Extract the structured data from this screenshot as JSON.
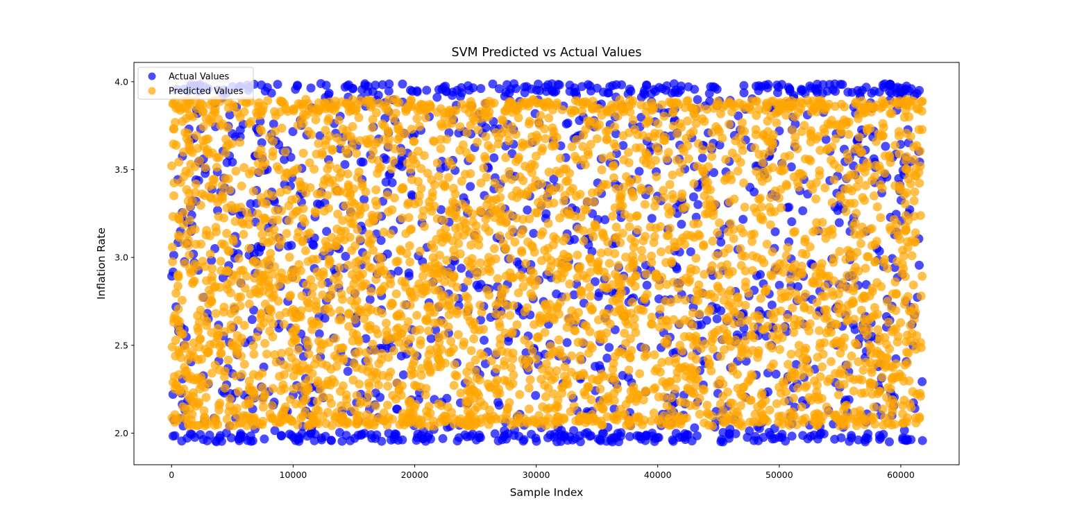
{
  "chart_data": {
    "type": "scatter",
    "title": "SVM Predicted vs Actual Values",
    "xlabel": "Sample Index",
    "ylabel": "Inflation Rate",
    "xlim": [
      -3100,
      64800
    ],
    "ylim": [
      1.82,
      4.11
    ],
    "x_ticks": [
      {
        "value": 0,
        "label": "0"
      },
      {
        "value": 10000,
        "label": "10000"
      },
      {
        "value": 20000,
        "label": "20000"
      },
      {
        "value": 30000,
        "label": "30000"
      },
      {
        "value": 40000,
        "label": "40000"
      },
      {
        "value": 50000,
        "label": "50000"
      },
      {
        "value": 60000,
        "label": "60000"
      }
    ],
    "y_ticks": [
      {
        "value": 2.0,
        "label": "2.0"
      },
      {
        "value": 2.5,
        "label": "2.5"
      },
      {
        "value": 3.0,
        "label": "3.0"
      },
      {
        "value": 3.5,
        "label": "3.5"
      },
      {
        "value": 4.0,
        "label": "4.0"
      }
    ],
    "grid": false,
    "legend_position": "top-left",
    "n_points_per_series": 61800,
    "series": [
      {
        "name": "Actual Values",
        "color": "#0000ff",
        "alpha": 0.7,
        "x_range": [
          0,
          61800
        ],
        "y_range": [
          1.95,
          3.99
        ],
        "distribution": "uniform"
      },
      {
        "name": "Predicted Values",
        "color": "#ffa500",
        "alpha": 0.7,
        "x_range": [
          0,
          61800
        ],
        "y_range": [
          2.04,
          3.9
        ],
        "distribution": "dense 2.04-2.95, sparser 2.95-3.90"
      }
    ]
  }
}
